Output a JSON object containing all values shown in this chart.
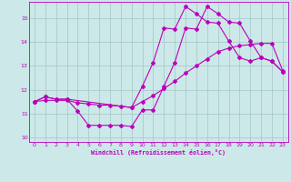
{
  "bg_color": "#cce8e8",
  "grid_color": "#aacccc",
  "line_color": "#bb00bb",
  "xlabel": "Windchill (Refroidissement éolien,°C)",
  "ylim": [
    9.8,
    15.7
  ],
  "xlim": [
    -0.5,
    23.5
  ],
  "yticks": [
    10,
    11,
    12,
    13,
    14,
    15
  ],
  "xticks": [
    0,
    1,
    2,
    3,
    4,
    5,
    6,
    7,
    8,
    9,
    10,
    11,
    12,
    13,
    14,
    15,
    16,
    17,
    18,
    19,
    20,
    21,
    22,
    23
  ],
  "curve1_x": [
    0,
    1,
    2,
    3,
    4,
    5,
    6,
    7,
    8,
    9,
    10,
    11,
    12,
    13,
    14,
    15,
    16,
    17,
    18,
    19,
    20,
    21,
    22,
    23
  ],
  "curve1_y": [
    11.5,
    11.7,
    11.6,
    11.6,
    11.1,
    10.5,
    10.5,
    10.5,
    10.5,
    10.45,
    11.15,
    11.15,
    12.15,
    13.15,
    14.6,
    14.55,
    15.5,
    15.2,
    14.85,
    14.8,
    14.05,
    13.35,
    13.2,
    12.75
  ],
  "curve2_x": [
    0,
    1,
    2,
    3,
    4,
    5,
    6,
    7,
    8,
    9,
    10,
    11,
    12,
    13,
    14,
    15,
    16,
    17,
    18,
    19,
    20,
    21,
    22,
    23
  ],
  "curve2_y": [
    11.5,
    11.55,
    11.55,
    11.55,
    11.45,
    11.4,
    11.35,
    11.35,
    11.3,
    11.25,
    11.5,
    11.75,
    12.05,
    12.35,
    12.7,
    13.0,
    13.3,
    13.6,
    13.75,
    13.85,
    13.9,
    13.95,
    13.95,
    12.8
  ],
  "curve3_x": [
    0,
    1,
    2,
    3,
    9,
    10,
    11,
    12,
    13,
    14,
    15,
    16,
    17,
    18,
    19,
    20,
    21,
    22,
    23
  ],
  "curve3_y": [
    11.5,
    11.7,
    11.6,
    11.6,
    11.25,
    12.15,
    13.15,
    14.6,
    14.55,
    15.5,
    15.2,
    14.85,
    14.8,
    14.05,
    13.35,
    13.2,
    13.35,
    13.2,
    12.75
  ]
}
